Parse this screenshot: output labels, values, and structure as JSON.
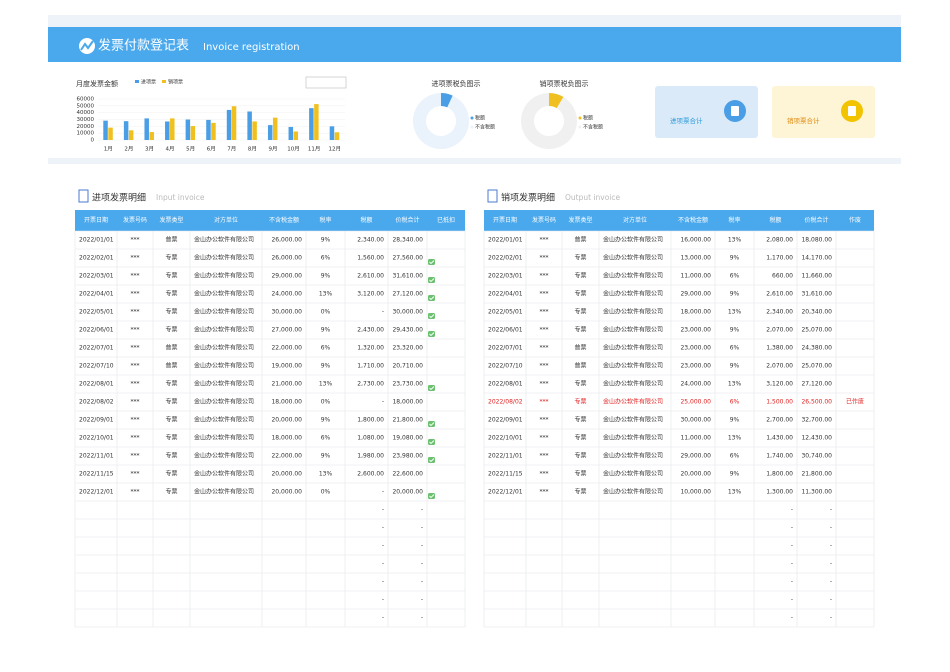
{
  "header": {
    "title": "发票付款登记表",
    "subtitle": "Invoice registration"
  },
  "chart_data": [
    {
      "type": "bar",
      "title": "月度发票金额",
      "categories": [
        "1月",
        "2月",
        "3月",
        "4月",
        "5月",
        "6月",
        "7月",
        "8月",
        "9月",
        "10月",
        "11月",
        "12月"
      ],
      "series": [
        {
          "name": "进项票",
          "color": "#4a9ee6",
          "values": [
            28340,
            27560,
            31610,
            27120,
            30000,
            29430,
            44030,
            41730,
            21800,
            19080,
            46580,
            20000
          ]
        },
        {
          "name": "销项票",
          "color": "#f0c020",
          "values": [
            18080,
            14170,
            11660,
            31610,
            20340,
            25070,
            49450,
            27120,
            32700,
            12430,
            52540,
            11300
          ]
        }
      ],
      "ylim": [
        0,
        60000
      ],
      "yticks": [
        0,
        10000,
        20000,
        30000,
        40000,
        50000,
        60000
      ]
    },
    {
      "type": "pie",
      "title": "进项票税负图示",
      "labels": [
        "税额",
        "不含税额"
      ],
      "values": [
        25280,
        342000
      ],
      "colors": [
        "#4a9ee6",
        "#eaf2fb"
      ]
    },
    {
      "type": "pie",
      "title": "销项票税负图示",
      "labels": [
        "税额",
        "不含税额"
      ],
      "values": [
        26470,
        280000
      ],
      "colors": [
        "#f0c020",
        "#f0f0f0"
      ]
    }
  ],
  "cards": [
    {
      "label": "进项票合计",
      "color": "#dbeaf9",
      "text_color": "#2a9ad8",
      "icon_color": "#4a9ee6"
    },
    {
      "label": "销项票合计",
      "color": "#fdf5d6",
      "text_color": "#e08a10",
      "icon_color": "#f2c300"
    }
  ],
  "tables": [
    {
      "title": "进项发票明细",
      "subtitle": "Input invoice",
      "columns": [
        "开票日期",
        "发票号码",
        "发票类型",
        "对方单位",
        "不含税金额",
        "税率",
        "税额",
        "价税合计",
        "已抵扣"
      ],
      "rows": [
        [
          "2022/01/01",
          "***",
          "普票",
          "金山办公软件有限公司",
          "26,000.00",
          "9%",
          "2,340.00",
          "28,340.00"
        ],
        [
          "2022/02/01",
          "***",
          "专票",
          "金山办公软件有限公司",
          "26,000.00",
          "6%",
          "1,560.00",
          "27,560.00"
        ],
        [
          "2022/03/01",
          "***",
          "专票",
          "金山办公软件有限公司",
          "29,000.00",
          "9%",
          "2,610.00",
          "31,610.00"
        ],
        [
          "2022/04/01",
          "***",
          "专票",
          "金山办公软件有限公司",
          "24,000.00",
          "13%",
          "3,120.00",
          "27,120.00"
        ],
        [
          "2022/05/01",
          "***",
          "专票",
          "金山办公软件有限公司",
          "30,000.00",
          "0%",
          "-",
          "30,000.00"
        ],
        [
          "2022/06/01",
          "***",
          "专票",
          "金山办公软件有限公司",
          "27,000.00",
          "9%",
          "2,430.00",
          "29,430.00"
        ],
        [
          "2022/07/01",
          "***",
          "普票",
          "金山办公软件有限公司",
          "22,000.00",
          "6%",
          "1,320.00",
          "23,320.00"
        ],
        [
          "2022/07/10",
          "***",
          "普票",
          "金山办公软件有限公司",
          "19,000.00",
          "9%",
          "1,710.00",
          "20,710.00"
        ],
        [
          "2022/08/01",
          "***",
          "专票",
          "金山办公软件有限公司",
          "21,000.00",
          "13%",
          "2,730.00",
          "23,730.00"
        ],
        [
          "2022/08/02",
          "***",
          "专票",
          "金山办公软件有限公司",
          "18,000.00",
          "0%",
          "-",
          "18,000.00"
        ],
        [
          "2022/09/01",
          "***",
          "专票",
          "金山办公软件有限公司",
          "20,000.00",
          "9%",
          "1,800.00",
          "21,800.00"
        ],
        [
          "2022/10/01",
          "***",
          "专票",
          "金山办公软件有限公司",
          "18,000.00",
          "6%",
          "1,080.00",
          "19,080.00"
        ],
        [
          "2022/11/01",
          "***",
          "专票",
          "金山办公软件有限公司",
          "22,000.00",
          "9%",
          "1,980.00",
          "23,980.00"
        ],
        [
          "2022/11/15",
          "***",
          "专票",
          "金山办公软件有限公司",
          "20,000.00",
          "13%",
          "2,600.00",
          "22,600.00"
        ],
        [
          "2022/12/01",
          "***",
          "专票",
          "金山办公软件有限公司",
          "20,000.00",
          "0%",
          "-",
          "20,000.00"
        ]
      ],
      "deducted": [
        false,
        true,
        true,
        true,
        true,
        true,
        false,
        false,
        true,
        false,
        true,
        true,
        true,
        false,
        true
      ],
      "blank_rows": [
        [
          "-",
          "-"
        ],
        [
          "-",
          "-"
        ],
        [
          "-",
          "-"
        ],
        [
          "-",
          "-"
        ],
        [
          "-",
          "-"
        ],
        [
          "-",
          "-"
        ],
        [
          "-",
          "-"
        ]
      ]
    },
    {
      "title": "销项发票明细",
      "subtitle": "Output invoice",
      "columns": [
        "开票日期",
        "发票号码",
        "发票类型",
        "对方单位",
        "不含税金额",
        "税率",
        "税额",
        "价税合计",
        "作废"
      ],
      "rows": [
        [
          "2022/01/01",
          "***",
          "普票",
          "金山办公软件有限公司",
          "16,000.00",
          "13%",
          "2,080.00",
          "18,080.00"
        ],
        [
          "2022/02/01",
          "***",
          "专票",
          "金山办公软件有限公司",
          "13,000.00",
          "9%",
          "1,170.00",
          "14,170.00"
        ],
        [
          "2022/03/01",
          "***",
          "专票",
          "金山办公软件有限公司",
          "11,000.00",
          "6%",
          "660.00",
          "11,660.00"
        ],
        [
          "2022/04/01",
          "***",
          "专票",
          "金山办公软件有限公司",
          "29,000.00",
          "9%",
          "2,610.00",
          "31,610.00"
        ],
        [
          "2022/05/01",
          "***",
          "专票",
          "金山办公软件有限公司",
          "18,000.00",
          "13%",
          "2,340.00",
          "20,340.00"
        ],
        [
          "2022/06/01",
          "***",
          "专票",
          "金山办公软件有限公司",
          "23,000.00",
          "9%",
          "2,070.00",
          "25,070.00"
        ],
        [
          "2022/07/01",
          "***",
          "普票",
          "金山办公软件有限公司",
          "23,000.00",
          "6%",
          "1,380.00",
          "24,380.00"
        ],
        [
          "2022/07/10",
          "***",
          "普票",
          "金山办公软件有限公司",
          "23,000.00",
          "9%",
          "2,070.00",
          "25,070.00"
        ],
        [
          "2022/08/01",
          "***",
          "专票",
          "金山办公软件有限公司",
          "24,000.00",
          "13%",
          "3,120.00",
          "27,120.00"
        ],
        [
          "2022/08/02",
          "***",
          "专票",
          "金山办公软件有限公司",
          "25,000.00",
          "6%",
          "1,500.00",
          "26,500.00",
          "已作废"
        ],
        [
          "2022/09/01",
          "***",
          "专票",
          "金山办公软件有限公司",
          "30,000.00",
          "9%",
          "2,700.00",
          "32,700.00"
        ],
        [
          "2022/10/01",
          "***",
          "专票",
          "金山办公软件有限公司",
          "11,000.00",
          "13%",
          "1,430.00",
          "12,430.00"
        ],
        [
          "2022/11/01",
          "***",
          "专票",
          "金山办公软件有限公司",
          "29,000.00",
          "6%",
          "1,740.00",
          "30,740.00"
        ],
        [
          "2022/11/15",
          "***",
          "专票",
          "金山办公软件有限公司",
          "20,000.00",
          "9%",
          "1,800.00",
          "21,800.00"
        ],
        [
          "2022/12/01",
          "***",
          "专票",
          "金山办公软件有限公司",
          "10,000.00",
          "13%",
          "1,300.00",
          "11,300.00"
        ]
      ],
      "blank_rows": [
        [
          "-",
          "-"
        ],
        [
          "-",
          "-"
        ],
        [
          "-",
          "-"
        ],
        [
          "-",
          "-"
        ],
        [
          "-",
          "-"
        ],
        [
          "-",
          "-"
        ],
        [
          "-",
          "-"
        ]
      ]
    }
  ]
}
